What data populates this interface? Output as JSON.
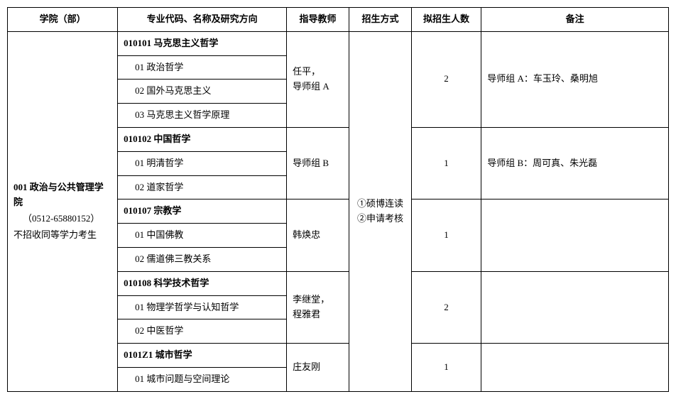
{
  "headers": {
    "dept": "学院（部）",
    "major": "专业代码、名称及研究方向",
    "advisor": "指导教师",
    "method": "招生方式",
    "quota": "拟招生人数",
    "remark": "备注"
  },
  "dept": {
    "name": "001 政治与公共管理学院",
    "phone": "（0512-65880152）",
    "note": "不招收同等学力考生"
  },
  "method": "①硕博连读\n②申请考核",
  "groups": [
    {
      "header": "010101 马克思主义哲学",
      "directions": [
        "01 政治哲学",
        "02 国外马克思主义",
        "03 马克思主义哲学原理"
      ],
      "advisor": "任平，\n导师组 A",
      "quota": "2",
      "remark": "导师组 A：车玉玲、桑明旭"
    },
    {
      "header": "010102 中国哲学",
      "directions": [
        "01 明清哲学",
        "02 道家哲学"
      ],
      "advisor": "导师组 B",
      "quota": "1",
      "remark": "导师组 B：周可真、朱光磊"
    },
    {
      "header": "010107 宗教学",
      "directions": [
        "01 中国佛教",
        "02 儒道佛三教关系"
      ],
      "advisor": "韩焕忠",
      "quota": "1",
      "remark": ""
    },
    {
      "header": "010108 科学技术哲学",
      "directions": [
        "01 物理学哲学与认知哲学",
        "02 中医哲学"
      ],
      "advisor": "李继堂，\n程雅君",
      "quota": "2",
      "remark": ""
    },
    {
      "header": "0101Z1 城市哲学",
      "directions": [
        "01 城市问题与空间理论"
      ],
      "advisor": "庄友刚",
      "quota": "1",
      "remark": ""
    }
  ]
}
